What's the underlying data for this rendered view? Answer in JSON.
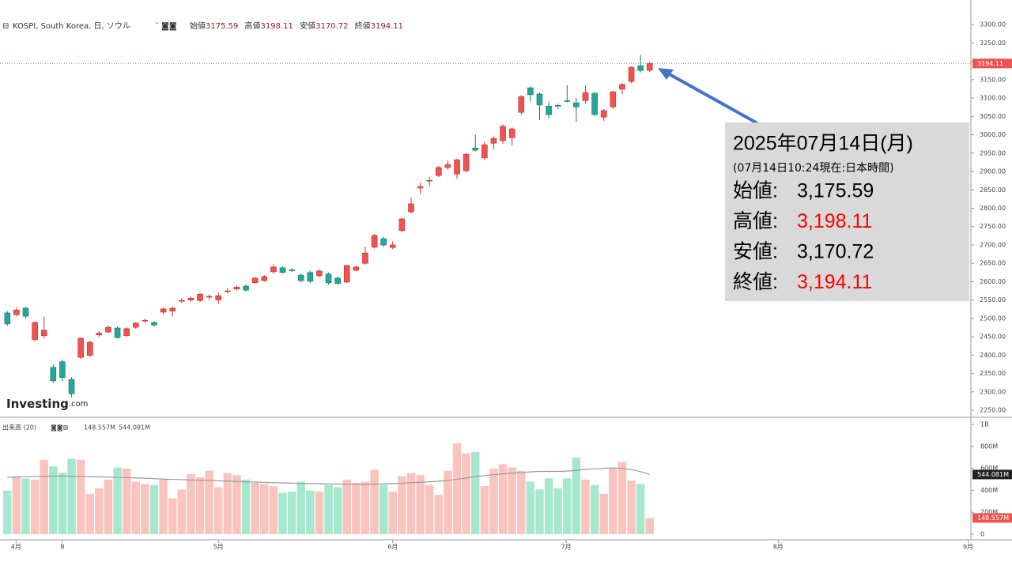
{
  "chart_data": {
    "type": "candlestick",
    "title": "KOSPI, South Korea, 日, ソウル",
    "ohlc_labels": [
      "始値",
      "高値",
      "安値",
      "終値"
    ],
    "open": [
      2515,
      2510,
      2528,
      2442,
      2453,
      2367,
      2382,
      2334,
      2394,
      2399,
      2455,
      2463,
      2474,
      2453,
      2476,
      2493,
      2489,
      2517,
      2520,
      2547,
      2550,
      2549,
      2558,
      2550,
      2573,
      2580,
      2588,
      2597,
      2603,
      2627,
      2638,
      2632,
      2618,
      2625,
      2616,
      2621,
      2610,
      2599,
      2631,
      2650,
      2694,
      2717,
      2693,
      2739,
      2790,
      2855,
      2874,
      2889,
      2911,
      2893,
      2902,
      2964,
      2937,
      2977,
      2984,
      2992,
      3061,
      3128,
      3111,
      3078,
      3080,
      3093,
      3087,
      3093,
      3113,
      3048,
      3076,
      3124,
      3145,
      3188,
      3175.59
    ],
    "high": [
      2520,
      2530,
      2532,
      2492,
      2505,
      2375,
      2388,
      2340,
      2448,
      2440,
      2465,
      2480,
      2478,
      2476,
      2490,
      2500,
      2492,
      2530,
      2532,
      2555,
      2560,
      2570,
      2565,
      2570,
      2582,
      2590,
      2592,
      2612,
      2618,
      2648,
      2642,
      2636,
      2622,
      2630,
      2634,
      2625,
      2614,
      2646,
      2644,
      2695,
      2730,
      2722,
      2710,
      2775,
      2830,
      2870,
      2885,
      2915,
      2930,
      2935,
      2950,
      3000,
      2980,
      2995,
      3028,
      3020,
      3108,
      3132,
      3115,
      3090,
      3085,
      3135,
      3100,
      3135,
      3117,
      3070,
      3120,
      3140,
      3186,
      3218,
      3198.11
    ],
    "low": [
      2480,
      2505,
      2500,
      2438,
      2445,
      2325,
      2330,
      2285,
      2390,
      2396,
      2450,
      2460,
      2445,
      2450,
      2472,
      2488,
      2478,
      2512,
      2505,
      2542,
      2546,
      2545,
      2550,
      2540,
      2568,
      2576,
      2573,
      2595,
      2600,
      2622,
      2622,
      2626,
      2598,
      2596,
      2612,
      2592,
      2592,
      2596,
      2628,
      2646,
      2690,
      2695,
      2688,
      2735,
      2786,
      2840,
      2860,
      2885,
      2905,
      2880,
      2898,
      2955,
      2932,
      2960,
      2975,
      2970,
      3055,
      3090,
      3040,
      3045,
      3070,
      3088,
      3035,
      3085,
      3050,
      3038,
      3070,
      3110,
      3140,
      3170,
      3170.72
    ],
    "close": [
      2485,
      2523,
      2506,
      2489,
      2468,
      2330,
      2339,
      2295,
      2446,
      2435,
      2460,
      2476,
      2448,
      2472,
      2487,
      2495,
      2482,
      2526,
      2528,
      2549,
      2555,
      2566,
      2560,
      2562,
      2575,
      2585,
      2577,
      2610,
      2614,
      2640,
      2625,
      2630,
      2603,
      2601,
      2629,
      2597,
      2595,
      2644,
      2640,
      2678,
      2726,
      2700,
      2700,
      2771,
      2812,
      2859,
      2876,
      2911,
      2919,
      2932,
      2947,
      2958,
      2973,
      2990,
      3023,
      3016,
      3104,
      3109,
      3081,
      3055,
      3078,
      3091,
      3076,
      3115,
      3055,
      3066,
      3117,
      3137,
      3184,
      3175,
      3194.11
    ],
    "up_color": "#ef5350",
    "down_color": "#26a69a",
    "ylim": [
      2233,
      3367
    ],
    "yticks": [
      {
        "value": 2250,
        "label": "2250.00"
      },
      {
        "value": 2300,
        "label": "2300.00"
      },
      {
        "value": 2350,
        "label": "2350.00"
      },
      {
        "value": 2400,
        "label": "2400.00"
      },
      {
        "value": 2450,
        "label": "2450.00"
      },
      {
        "value": 2500,
        "label": "2500.00"
      },
      {
        "value": 2550,
        "label": "2550.00"
      },
      {
        "value": 2600,
        "label": "2600.00"
      },
      {
        "value": 2650,
        "label": "2650.00"
      },
      {
        "value": 2700,
        "label": "2700.00"
      },
      {
        "value": 2750,
        "label": "2750.00"
      },
      {
        "value": 2800,
        "label": "2800.00"
      },
      {
        "value": 2850,
        "label": "2850.00"
      },
      {
        "value": 2900,
        "label": "2900.00"
      },
      {
        "value": 2950,
        "label": "2950.00"
      },
      {
        "value": 3000,
        "label": "3000.00"
      },
      {
        "value": 3050,
        "label": "3050.00"
      },
      {
        "value": 3100,
        "label": "3100.00"
      },
      {
        "value": 3150,
        "label": "3150.00"
      },
      {
        "value": 3200,
        "label": "3200.00"
      },
      {
        "value": 3250,
        "label": "3250.00"
      },
      {
        "value": 3300,
        "label": "3300.00"
      }
    ],
    "xlim": [
      -0.8,
      105
    ],
    "xticks": [
      {
        "value": 0.95,
        "label": "4月"
      },
      {
        "value": 6.0,
        "label": "8"
      },
      {
        "value": 23,
        "label": "5月"
      },
      {
        "value": 42,
        "label": "6月"
      },
      {
        "value": 60.9,
        "label": "7月"
      },
      {
        "value": 84,
        "label": "8月"
      },
      {
        "value": 104.7,
        "label": "9月"
      }
    ],
    "volume_title": "出来高 (20)",
    "volume": [
      400,
      520,
      510,
      500,
      680,
      620,
      560,
      690,
      680,
      370,
      420,
      500,
      610,
      600,
      480,
      460,
      450,
      500,
      330,
      410,
      550,
      520,
      580,
      430,
      560,
      540,
      500,
      470,
      460,
      440,
      380,
      390,
      480,
      400,
      390,
      450,
      430,
      500,
      470,
      480,
      590,
      450,
      390,
      530,
      560,
      540,
      450,
      360,
      580,
      830,
      740,
      750,
      440,
      600,
      640,
      610,
      580,
      480,
      410,
      510,
      420,
      510,
      700,
      500,
      450,
      370,
      600,
      660,
      490,
      460,
      148.557
    ],
    "volume_last_label": "148.557M",
    "volume_ma": [
      520,
      522,
      524,
      526,
      528,
      530,
      530,
      528,
      527,
      525,
      522,
      520,
      518,
      515,
      512,
      510,
      506,
      502,
      500,
      497,
      494,
      492,
      490,
      487,
      484,
      481,
      478,
      475,
      472,
      470,
      467,
      465,
      463,
      461,
      460,
      458,
      457,
      456,
      455,
      455,
      456,
      458,
      461,
      465,
      469,
      473,
      478,
      483,
      490,
      500,
      512,
      524,
      534,
      542,
      550,
      556,
      562,
      568,
      572,
      572,
      572,
      575,
      582,
      590,
      595,
      600,
      604,
      600,
      590,
      570,
      544.081
    ],
    "volume_ma_label": "544.081M",
    "vlim": [
      -50,
      1065
    ],
    "vticks": [
      {
        "value": 0,
        "label": "0"
      },
      {
        "value": 200,
        "label": "200M"
      },
      {
        "value": 400,
        "label": "400M"
      },
      {
        "value": 600,
        "label": "600M"
      },
      {
        "value": 800,
        "label": "800M"
      },
      {
        "value": 1000,
        "label": "1B"
      }
    ],
    "logo": "Investing",
    "logo_suffix": ".com",
    "annotation": {
      "date": "2025年07月14日(月)",
      "note": "(07月14日10:24現在:日本時間)",
      "rows": [
        {
          "label": "始値:",
          "value": "3,175.59",
          "color": "#000000"
        },
        {
          "label": "高値:",
          "value": "3,198.11",
          "color": "#ff0000"
        },
        {
          "label": "安値:",
          "value": "3,170.72",
          "color": "#000000"
        },
        {
          "label": "終値:",
          "value": "3,194.11",
          "color": "#ff0000"
        }
      ]
    }
  }
}
